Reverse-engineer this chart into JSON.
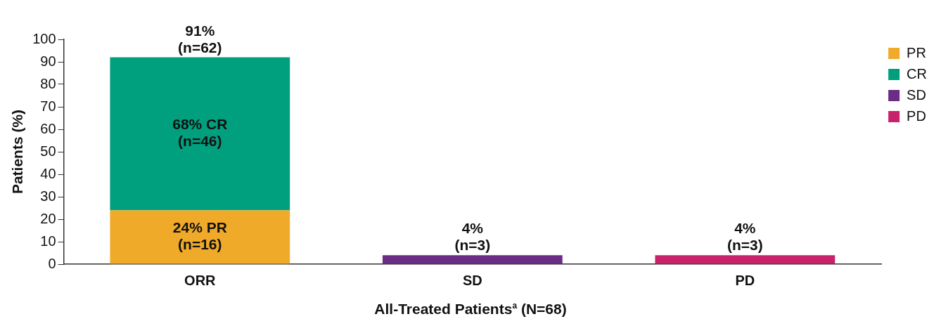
{
  "chart_data": {
    "type": "bar",
    "stacked": true,
    "ylabel": "Patients (%)",
    "xlabel": "All-Treated Patients$^{a}$ (N=68)",
    "categories": [
      "ORR",
      "SD",
      "PD"
    ],
    "series": [
      {
        "name": "PR",
        "color": "#f0aa2a",
        "values": [
          24,
          null,
          null
        ],
        "value_labels": [
          "24% PR\n(n=16)",
          null,
          null
        ]
      },
      {
        "name": "CR",
        "color": "#00a07f",
        "values": [
          68,
          null,
          null
        ],
        "value_labels": [
          "68% CR\n(n=46)",
          null,
          null
        ]
      },
      {
        "name": "SD",
        "color": "#6a2c84",
        "values": [
          null,
          4,
          null
        ],
        "value_labels": [
          null,
          "4%\n(n=3)",
          null
        ]
      },
      {
        "name": "PD",
        "color": "#c8236a",
        "values": [
          null,
          null,
          4
        ],
        "value_labels": [
          null,
          null,
          "4%\n(n=3)"
        ]
      }
    ],
    "totals": [
      "91%\n(n=62)",
      null,
      null
    ],
    "ylim": [
      0,
      100
    ],
    "yticks": [
      0,
      10,
      20,
      30,
      40,
      50,
      60,
      70,
      80,
      90,
      100
    ],
    "grid": false,
    "legend": "top right"
  }
}
